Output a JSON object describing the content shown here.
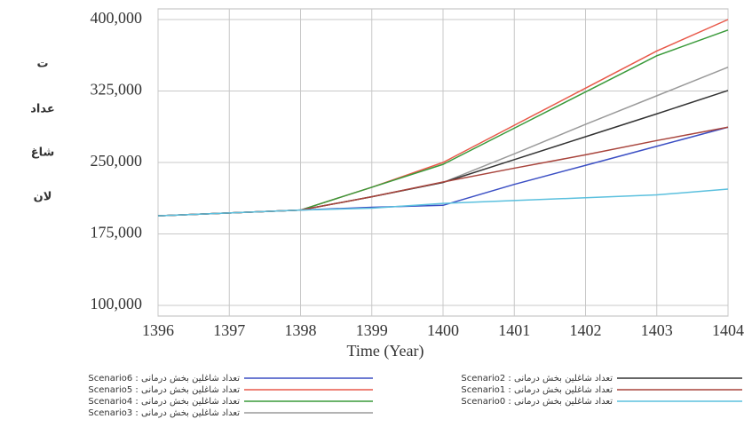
{
  "chart_data": {
    "type": "line",
    "ylabel_lines": [
      "ت",
      "عداد",
      "شاغ",
      "لان"
    ],
    "xlabel": "Time (Year)",
    "x": [
      1396,
      1397,
      1398,
      1399,
      1400,
      1401,
      1402,
      1403,
      1404
    ],
    "xlim": [
      1396,
      1404
    ],
    "xticks": [
      1396,
      1397,
      1398,
      1399,
      1400,
      1401,
      1402,
      1403,
      1404
    ],
    "ylim": [
      100000,
      400000
    ],
    "yticks": [
      {
        "value": 100000,
        "label": "100,000"
      },
      {
        "value": 175000,
        "label": "175,000"
      },
      {
        "value": 250000,
        "label": "250,000"
      },
      {
        "value": 325000,
        "label": "325,000"
      },
      {
        "value": 400000,
        "label": "400,000"
      }
    ],
    "grid": true,
    "series": [
      {
        "name": "Scenario6 : تعداد شاغلین بخش درمانی",
        "color": "#3b4fc4",
        "values": [
          194000,
          197000,
          200000,
          203000,
          205000,
          227000,
          247000,
          267000,
          287000
        ]
      },
      {
        "name": "Scenario5 : تعداد شاغلین بخش درمانی",
        "color": "#e8594a",
        "values": [
          194000,
          197000,
          200000,
          224000,
          250000,
          289000,
          328000,
          367000,
          400000
        ]
      },
      {
        "name": "Scenario4 : تعداد شاغلین بخش درمانی",
        "color": "#3a9a3a",
        "values": [
          194000,
          197000,
          200000,
          224000,
          248000,
          286000,
          324000,
          362000,
          389000
        ]
      },
      {
        "name": "Scenario3 : تعداد شاغلین بخش درمانی",
        "color": "#9a9a9a",
        "values": [
          194000,
          197000,
          200000,
          214000,
          229000,
          259000,
          290000,
          320000,
          350000
        ]
      },
      {
        "name": "Scenario2 : تعداد شاغلین بخش درمانی",
        "color": "#333333",
        "values": [
          194000,
          197000,
          200000,
          214000,
          229000,
          253000,
          277000,
          301000,
          325500
        ]
      },
      {
        "name": "Scenario1 : تعداد شاغلین بخش درمانی",
        "color": "#a8443c",
        "values": [
          194000,
          197000,
          200000,
          214000,
          229500,
          244000,
          258000,
          273000,
          287000
        ]
      },
      {
        "name": "Scenario0 : تعداد شاغلین بخش درمانی",
        "color": "#5bc0de",
        "values": [
          194000,
          197000,
          200000,
          202000,
          207000,
          210000,
          213000,
          216000,
          222000
        ]
      }
    ]
  }
}
